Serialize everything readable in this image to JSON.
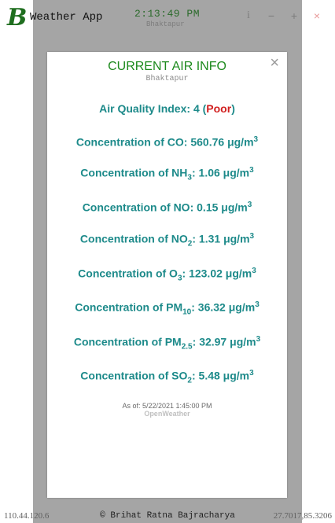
{
  "app": {
    "logo_letter": "B",
    "title": "Weather App"
  },
  "clock": {
    "time": "2:13:49 PM",
    "location": "Bhaktapur"
  },
  "window_controls": {
    "info": "i",
    "minimize": "−",
    "maximize": "+",
    "close": "×"
  },
  "modal": {
    "title": "CURRENT AIR INFO",
    "subtitle": "Bhaktapur",
    "close_label": "×",
    "aqi": {
      "label": "Air Quality Index:",
      "value": "4",
      "category": "Poor"
    },
    "pollutants": [
      {
        "prefix": "Concentration of CO",
        "sub": "",
        "value": "560.76",
        "unit": "μg/m",
        "unit_exp": "3"
      },
      {
        "prefix": "Concentration of NH",
        "sub": "3",
        "value": "1.06",
        "unit": "μg/m",
        "unit_exp": "3"
      },
      {
        "prefix": "Concentration of NO",
        "sub": "",
        "value": "0.15",
        "unit": "μg/m",
        "unit_exp": "3"
      },
      {
        "prefix": "Concentration of NO",
        "sub": "2",
        "value": "1.31",
        "unit": "μg/m",
        "unit_exp": "3"
      },
      {
        "prefix": "Concentration of O",
        "sub": "3",
        "value": "123.02",
        "unit": "μg/m",
        "unit_exp": "3"
      },
      {
        "prefix": "Concentration of PM",
        "sub": "10",
        "value": "36.32",
        "unit": "μg/m",
        "unit_exp": "3"
      },
      {
        "prefix": "Concentration of PM",
        "sub": "2.5",
        "value": "32.97",
        "unit": "μg/m",
        "unit_exp": "3"
      },
      {
        "prefix": "Concentration of SO",
        "sub": "2",
        "value": "5.48",
        "unit": "μg/m",
        "unit_exp": "3"
      }
    ],
    "as_of_label": "As of:",
    "as_of_value": "5/22/2021 1:45:00 PM",
    "provider": "OpenWeather"
  },
  "footer": {
    "left": "110.44.120.6",
    "center": "© Brihat Ratna Bajracharya",
    "right": "27.7017,85.3206"
  },
  "colors": {
    "accent_green": "#1d8a1d",
    "teal": "#1d8a8a",
    "poor_red": "#d12020",
    "overlay": "#a5a5a5"
  }
}
